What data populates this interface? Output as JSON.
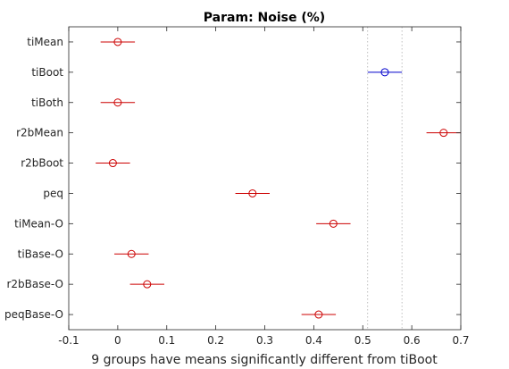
{
  "chart_data": {
    "type": "scatter",
    "subtype": "multiple-comparison-intervals",
    "title": "Param: Noise (%)",
    "xlabel": "9 groups have means significantly different from tiBoot",
    "ylabel": "",
    "xlim": [
      -0.1,
      0.7
    ],
    "xticks": [
      "-0.1",
      "0",
      "0.1",
      "0.2",
      "0.3",
      "0.4",
      "0.5",
      "0.6",
      "0.7"
    ],
    "grid": false,
    "reference_group": "tiBoot",
    "reference_interval": [
      0.51,
      0.58
    ],
    "groups": [
      {
        "name": "tiMean",
        "mean": 0.0,
        "lower": -0.035,
        "upper": 0.035,
        "highlight": false
      },
      {
        "name": "tiBoot",
        "mean": 0.545,
        "lower": 0.51,
        "upper": 0.58,
        "highlight": true
      },
      {
        "name": "tiBoth",
        "mean": 0.0,
        "lower": -0.035,
        "upper": 0.035,
        "highlight": false
      },
      {
        "name": "r2bMean",
        "mean": 0.665,
        "lower": 0.63,
        "upper": 0.7,
        "highlight": false
      },
      {
        "name": "r2bBoot",
        "mean": -0.01,
        "lower": -0.045,
        "upper": 0.025,
        "highlight": false
      },
      {
        "name": "peq",
        "mean": 0.275,
        "lower": 0.24,
        "upper": 0.31,
        "highlight": false
      },
      {
        "name": "tiMean-O",
        "mean": 0.44,
        "lower": 0.405,
        "upper": 0.475,
        "highlight": false
      },
      {
        "name": "tiBase-O",
        "mean": 0.028,
        "lower": -0.007,
        "upper": 0.063,
        "highlight": false
      },
      {
        "name": "r2bBase-O",
        "mean": 0.06,
        "lower": 0.025,
        "upper": 0.095,
        "highlight": false
      },
      {
        "name": "peqBase-O",
        "mean": 0.41,
        "lower": 0.375,
        "upper": 0.445,
        "highlight": false
      }
    ]
  },
  "colors": {
    "axis": "#262626",
    "highlight": "#0000cc",
    "other": "#cc0000",
    "reference_line": "#b0b0b0"
  }
}
